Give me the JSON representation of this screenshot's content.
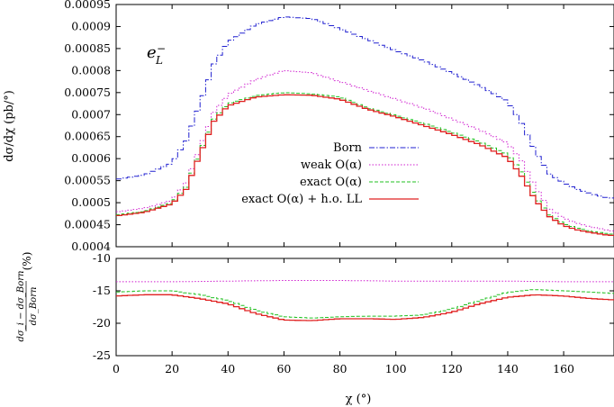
{
  "chart_data": [
    {
      "type": "line",
      "panel": "main",
      "annotation": "e_L^-",
      "annotation_main": "e",
      "annotation_sub": "L",
      "annotation_sup": "−",
      "ylabel": "dσ/dχ (pb/°)",
      "ylim": [
        0.0004,
        0.00095
      ],
      "xlim": [
        0,
        178
      ],
      "yticks": [
        "0.0004",
        "0.00045",
        "0.0005",
        "0.00055",
        "0.0006",
        "0.00065",
        "0.0007",
        "0.00075",
        "0.0008",
        "0.00085",
        "0.0009",
        "0.00095"
      ],
      "legend_position": "right",
      "series": [
        {
          "name": "Born",
          "color": "#2020d0",
          "style": "dash-dot",
          "x": [
            0,
            10,
            20,
            25,
            30,
            35,
            40,
            50,
            60,
            70,
            80,
            90,
            100,
            110,
            120,
            130,
            140,
            145,
            150,
            155,
            160,
            165,
            170,
            175,
            178
          ],
          "y": [
            0.000553,
            0.000563,
            0.00059,
            0.00064,
            0.000725,
            0.000815,
            0.000865,
            0.000905,
            0.000922,
            0.000918,
            0.000895,
            0.00087,
            0.000845,
            0.000822,
            0.000795,
            0.000765,
            0.00073,
            0.00068,
            0.000615,
            0.000565,
            0.000545,
            0.00053,
            0.00052,
            0.000512,
            0.00051
          ]
        },
        {
          "name": "weak O(α)",
          "color": "#d020d0",
          "style": "dotted",
          "x": [
            0,
            10,
            20,
            25,
            30,
            35,
            40,
            50,
            60,
            70,
            80,
            90,
            100,
            110,
            120,
            130,
            140,
            145,
            150,
            155,
            160,
            165,
            170,
            175,
            178
          ],
          "y": [
            0.000479,
            0.000487,
            0.000505,
            0.000545,
            0.000625,
            0.000705,
            0.000745,
            0.00078,
            0.0008,
            0.000795,
            0.000775,
            0.000755,
            0.000735,
            0.000715,
            0.00069,
            0.000665,
            0.000635,
            0.000595,
            0.000535,
            0.000485,
            0.000465,
            0.000453,
            0.000445,
            0.000438,
            0.000435
          ]
        },
        {
          "name": "exact O(α)",
          "color": "#20c020",
          "style": "dashed",
          "x": [
            0,
            10,
            20,
            25,
            30,
            35,
            40,
            50,
            60,
            70,
            80,
            90,
            100,
            110,
            120,
            130,
            140,
            145,
            150,
            155,
            160,
            165,
            170,
            175,
            178
          ],
          "y": [
            0.000472,
            0.00048,
            0.0005,
            0.000535,
            0.000615,
            0.00069,
            0.000725,
            0.000743,
            0.00075,
            0.000747,
            0.00074,
            0.000715,
            0.000698,
            0.00068,
            0.00066,
            0.000638,
            0.00061,
            0.00057,
            0.000512,
            0.000472,
            0.000452,
            0.000442,
            0.000435,
            0.00043,
            0.000428
          ]
        },
        {
          "name": "exact O(α) + h.o. LL",
          "color": "#e02020",
          "style": "solid",
          "x": [
            0,
            10,
            20,
            25,
            30,
            35,
            40,
            50,
            60,
            70,
            80,
            90,
            100,
            110,
            120,
            130,
            140,
            145,
            150,
            155,
            160,
            165,
            170,
            175,
            178
          ],
          "y": [
            0.00047,
            0.000478,
            0.000497,
            0.00053,
            0.00061,
            0.000685,
            0.00072,
            0.00074,
            0.000745,
            0.000744,
            0.000735,
            0.000712,
            0.000695,
            0.000675,
            0.000655,
            0.000632,
            0.000602,
            0.00056,
            0.000505,
            0.000468,
            0.000448,
            0.000438,
            0.000432,
            0.000427,
            0.000425
          ]
        }
      ]
    },
    {
      "type": "line",
      "panel": "ratio",
      "ylabel": "(dσ_i − dσ_Born) / dσ_Born  (%)",
      "ylabel_num": "dσ_i − dσ_Born",
      "ylabel_den": "dσ_Born",
      "ylabel_unit": "(%)",
      "xlabel": "χ (°)",
      "xlim": [
        0,
        178
      ],
      "ylim": [
        -25,
        -10
      ],
      "xticks": [
        "0",
        "20",
        "40",
        "60",
        "80",
        "100",
        "120",
        "140",
        "160"
      ],
      "yticks": [
        "-25",
        "-20",
        "-15",
        "-10"
      ],
      "series": [
        {
          "name": "weak O(α)",
          "color": "#d020d0",
          "style": "dotted",
          "x": [
            0,
            20,
            40,
            60,
            80,
            100,
            120,
            140,
            160,
            178
          ],
          "y": [
            -13.6,
            -13.6,
            -13.5,
            -13.4,
            -13.4,
            -13.5,
            -13.5,
            -13.5,
            -13.6,
            -13.6
          ]
        },
        {
          "name": "exact O(α)",
          "color": "#20c020",
          "style": "dashed",
          "x": [
            0,
            10,
            20,
            30,
            40,
            50,
            60,
            70,
            80,
            90,
            100,
            110,
            120,
            130,
            140,
            150,
            160,
            170,
            178
          ],
          "y": [
            -15.2,
            -15.0,
            -15.0,
            -15.6,
            -16.5,
            -18.0,
            -19.0,
            -19.2,
            -19.0,
            -18.9,
            -18.9,
            -18.7,
            -17.8,
            -16.5,
            -15.2,
            -14.8,
            -15.0,
            -15.2,
            -15.4
          ]
        },
        {
          "name": "exact O(α) + h.o. LL",
          "color": "#e02020",
          "style": "solid",
          "x": [
            0,
            10,
            20,
            30,
            40,
            50,
            60,
            70,
            80,
            90,
            100,
            110,
            120,
            130,
            140,
            150,
            160,
            170,
            178
          ],
          "y": [
            -15.8,
            -15.6,
            -15.6,
            -16.2,
            -17.0,
            -18.5,
            -19.5,
            -19.6,
            -19.3,
            -19.3,
            -19.4,
            -19.1,
            -18.3,
            -17.0,
            -16.0,
            -15.6,
            -15.8,
            -16.2,
            -16.4
          ]
        }
      ]
    }
  ]
}
